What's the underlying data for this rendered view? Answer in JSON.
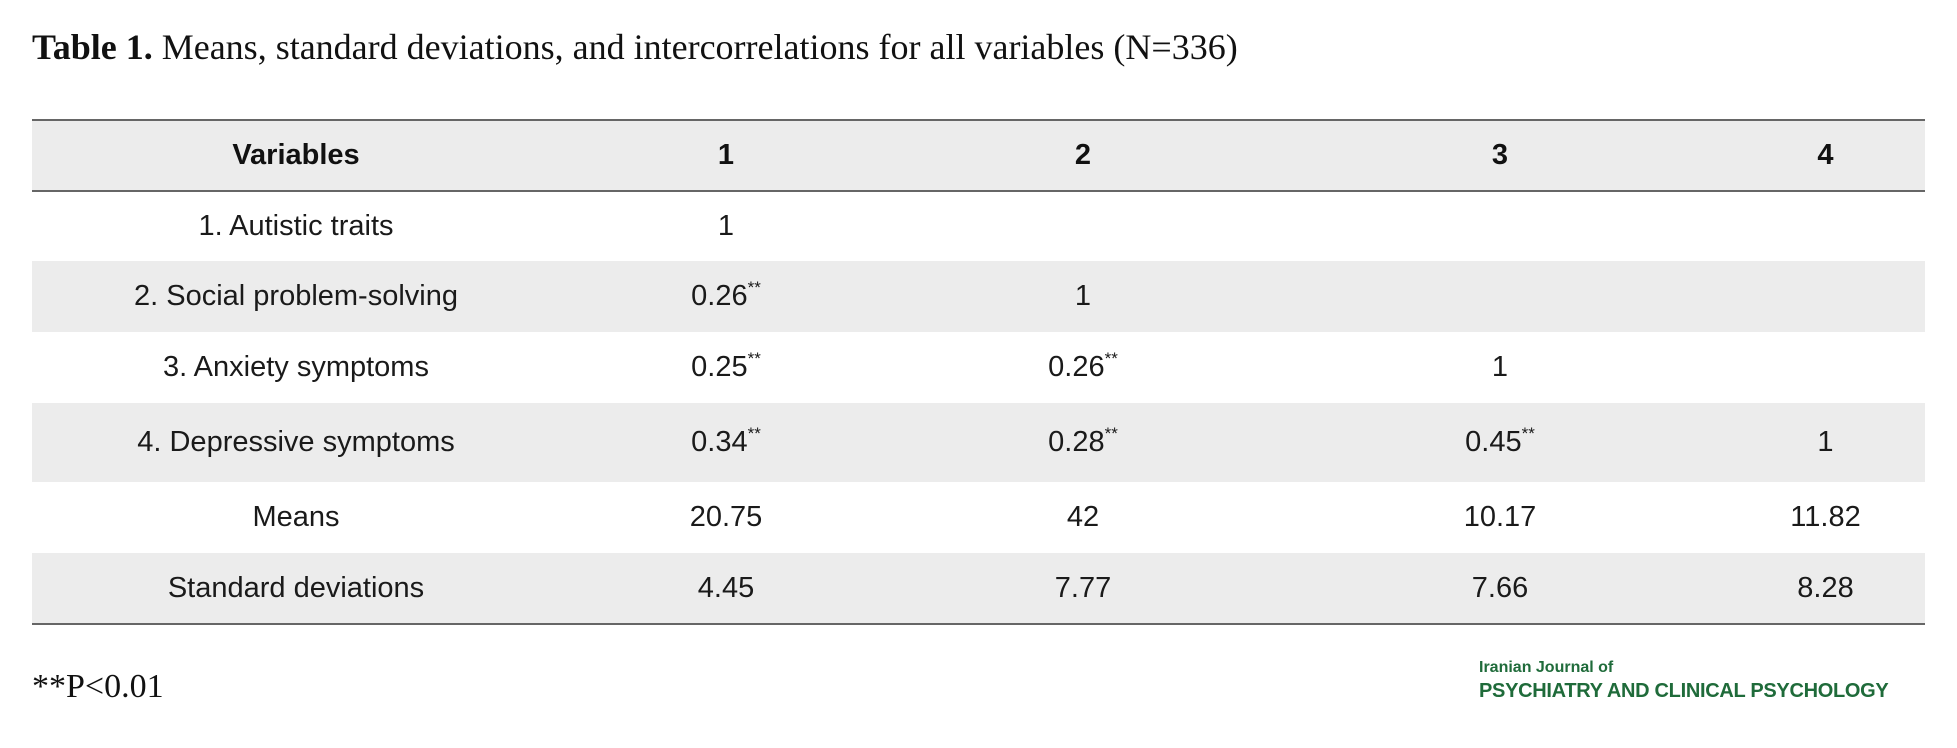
{
  "caption": {
    "label": "Table 1.",
    "text": "Means, standard deviations, and intercorrelations for all variables (N=336)"
  },
  "table": {
    "headers": [
      "Variables",
      "1",
      "2",
      "3",
      "4"
    ],
    "rows": [
      [
        {
          "v": "1. Autistic traits"
        },
        {
          "v": "1"
        },
        {
          "v": ""
        },
        {
          "v": ""
        },
        {
          "v": ""
        }
      ],
      [
        {
          "v": "2. Social problem-solving"
        },
        {
          "v": "0.26",
          "sig": "**"
        },
        {
          "v": "1"
        },
        {
          "v": ""
        },
        {
          "v": ""
        }
      ],
      [
        {
          "v": "3. Anxiety symptoms"
        },
        {
          "v": "0.25",
          "sig": "**"
        },
        {
          "v": "0.26",
          "sig": "**"
        },
        {
          "v": "1"
        },
        {
          "v": ""
        }
      ],
      [
        {
          "v": "4. Depressive symptoms"
        },
        {
          "v": "0.34",
          "sig": "**"
        },
        {
          "v": "0.28",
          "sig": "**"
        },
        {
          "v": "0.45",
          "sig": "**"
        },
        {
          "v": "1"
        }
      ],
      [
        {
          "v": "Means"
        },
        {
          "v": "20.75"
        },
        {
          "v": "42"
        },
        {
          "v": "10.17"
        },
        {
          "v": "11.82"
        }
      ],
      [
        {
          "v": "Standard deviations"
        },
        {
          "v": "4.45"
        },
        {
          "v": "7.77"
        },
        {
          "v": "7.66"
        },
        {
          "v": "8.28"
        }
      ]
    ]
  },
  "footnote": "**P<0.01",
  "logo": {
    "line1": "Iranian Journal of",
    "line2": "PSYCHIATRY AND CLINICAL PSYCHOLOGY",
    "color": "#1f6b3a"
  },
  "colors": {
    "row_shade": "#ececec",
    "rule": "#666666"
  }
}
